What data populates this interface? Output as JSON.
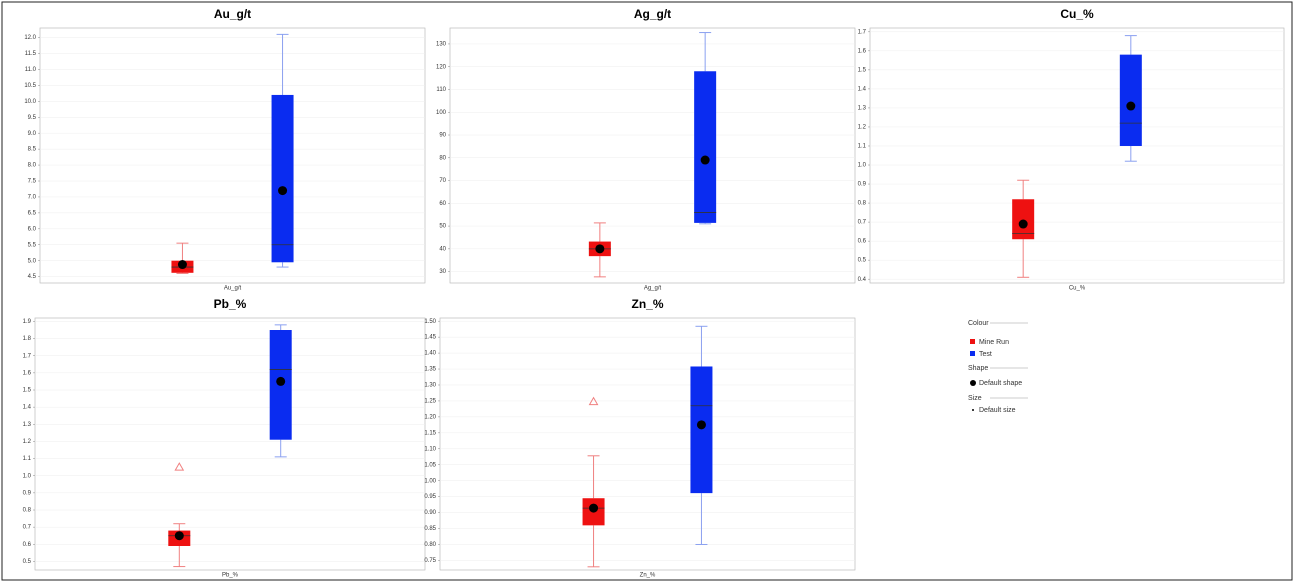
{
  "chart_data": [
    {
      "type": "box",
      "title": "Au_g/t",
      "xlabel": "Au_g/t",
      "ylim": [
        4.3,
        12.3
      ],
      "grid": true,
      "yticks": [
        {
          "value": 12,
          "label": "12.0"
        },
        11.5,
        {
          "value": 11,
          "label": "11.0"
        },
        10.5,
        {
          "value": 10,
          "label": "10.0"
        },
        9.5,
        {
          "value": 9,
          "label": "9.0"
        },
        8.5,
        {
          "value": 8,
          "label": "8.0"
        },
        7.5,
        {
          "value": 7,
          "label": "7.0"
        },
        6.5,
        {
          "value": 6,
          "label": "6.0"
        },
        5.5,
        {
          "value": 5,
          "label": "5.0"
        },
        4.5
      ],
      "series": [
        {
          "name": "Mine Run",
          "color": "#ee1111",
          "min": 4.6,
          "q1": 4.62,
          "median": 4.8,
          "q3": 5.0,
          "max": 5.55,
          "mean": 4.88,
          "outliers": []
        },
        {
          "name": "Test",
          "color": "#0a2cf0",
          "min": 4.8,
          "q1": 4.95,
          "median": 5.5,
          "q3": 10.2,
          "max": 12.1,
          "mean": 7.2,
          "outliers": []
        }
      ]
    },
    {
      "type": "box",
      "title": "Ag_g/t",
      "xlabel": "Ag_g/t",
      "ylim": [
        25,
        137
      ],
      "grid": true,
      "yticks": [
        130,
        120,
        110,
        100,
        90,
        80,
        70,
        60,
        50,
        40,
        30
      ],
      "series": [
        {
          "color": "#ee1111",
          "min": 27.7,
          "q1": 36.8,
          "median": 40,
          "q3": 43.2,
          "max": 51.4,
          "mean": 40,
          "outliers": []
        },
        {
          "color": "#0a2cf0",
          "min": 51,
          "q1": 51.4,
          "median": 56,
          "q3": 118,
          "max": 135,
          "mean": 79,
          "outliers": []
        }
      ]
    },
    {
      "type": "box",
      "title": "Cu_%",
      "xlabel": "Cu_%",
      "ylim": [
        0.38,
        1.72
      ],
      "grid": true,
      "yticks": [
        1.7,
        1.6,
        1.5,
        1.4,
        1.3,
        1.2,
        1.1,
        {
          "value": 1,
          "label": "1.0"
        },
        0.9,
        0.8,
        0.7,
        0.6,
        0.5,
        0.4
      ],
      "series": [
        {
          "color": "#ee1111",
          "min": 0.41,
          "q1": 0.61,
          "median": 0.64,
          "q3": 0.82,
          "max": 0.92,
          "mean": 0.69,
          "outliers": []
        },
        {
          "color": "#0a2cf0",
          "min": 1.02,
          "q1": 1.1,
          "median": 1.22,
          "q3": 1.58,
          "max": 1.68,
          "mean": 1.31,
          "outliers": []
        }
      ]
    },
    {
      "type": "box",
      "title": "Pb_%",
      "xlabel": "Pb_%",
      "ylim": [
        0.45,
        1.92
      ],
      "grid": true,
      "yticks": [
        1.9,
        1.8,
        1.7,
        1.6,
        1.5,
        1.4,
        1.3,
        1.2,
        1.1,
        {
          "value": 1,
          "label": "1.0"
        },
        0.9,
        0.8,
        0.7,
        0.6,
        0.5
      ],
      "series": [
        {
          "color": "#ee1111",
          "min": 0.47,
          "q1": 0.59,
          "median": 0.65,
          "q3": 0.68,
          "max": 0.72,
          "mean": 0.65,
          "outliers": [
            1.05
          ]
        },
        {
          "color": "#0a2cf0",
          "min": 1.11,
          "q1": 1.21,
          "median": 1.62,
          "q3": 1.85,
          "max": 1.88,
          "mean": 1.55,
          "outliers": []
        }
      ]
    },
    {
      "type": "box",
      "title": "Zn_%",
      "xlabel": "Zn_%",
      "ylim": [
        0.72,
        1.51
      ],
      "grid": true,
      "yticks": [
        {
          "value": 1.5,
          "label": "1.50"
        },
        1.45,
        {
          "value": 1.4,
          "label": "1.40"
        },
        1.35,
        {
          "value": 1.3,
          "label": "1.30"
        },
        1.25,
        {
          "value": 1.2,
          "label": "1.20"
        },
        1.15,
        {
          "value": 1.1,
          "label": "1.10"
        },
        1.05,
        {
          "value": 1,
          "label": "1.00"
        },
        0.95,
        {
          "value": 0.9,
          "label": "0.90"
        },
        0.85,
        {
          "value": 0.8,
          "label": "0.80"
        },
        0.75
      ],
      "series": [
        {
          "color": "#ee1111",
          "min": 0.73,
          "q1": 0.86,
          "median": 0.914,
          "q3": 0.945,
          "max": 1.078,
          "mean": 0.914,
          "outliers": [
            1.248
          ]
        },
        {
          "color": "#0a2cf0",
          "min": 0.8,
          "q1": 0.961,
          "median": 1.235,
          "q3": 1.358,
          "max": 1.484,
          "mean": 1.175,
          "outliers": []
        }
      ]
    }
  ],
  "legend": {
    "colour_title": "Colour",
    "shape_title": "Shape",
    "shape_entry": "Default shape",
    "size_title": "Size",
    "size_entry": "Default size"
  }
}
